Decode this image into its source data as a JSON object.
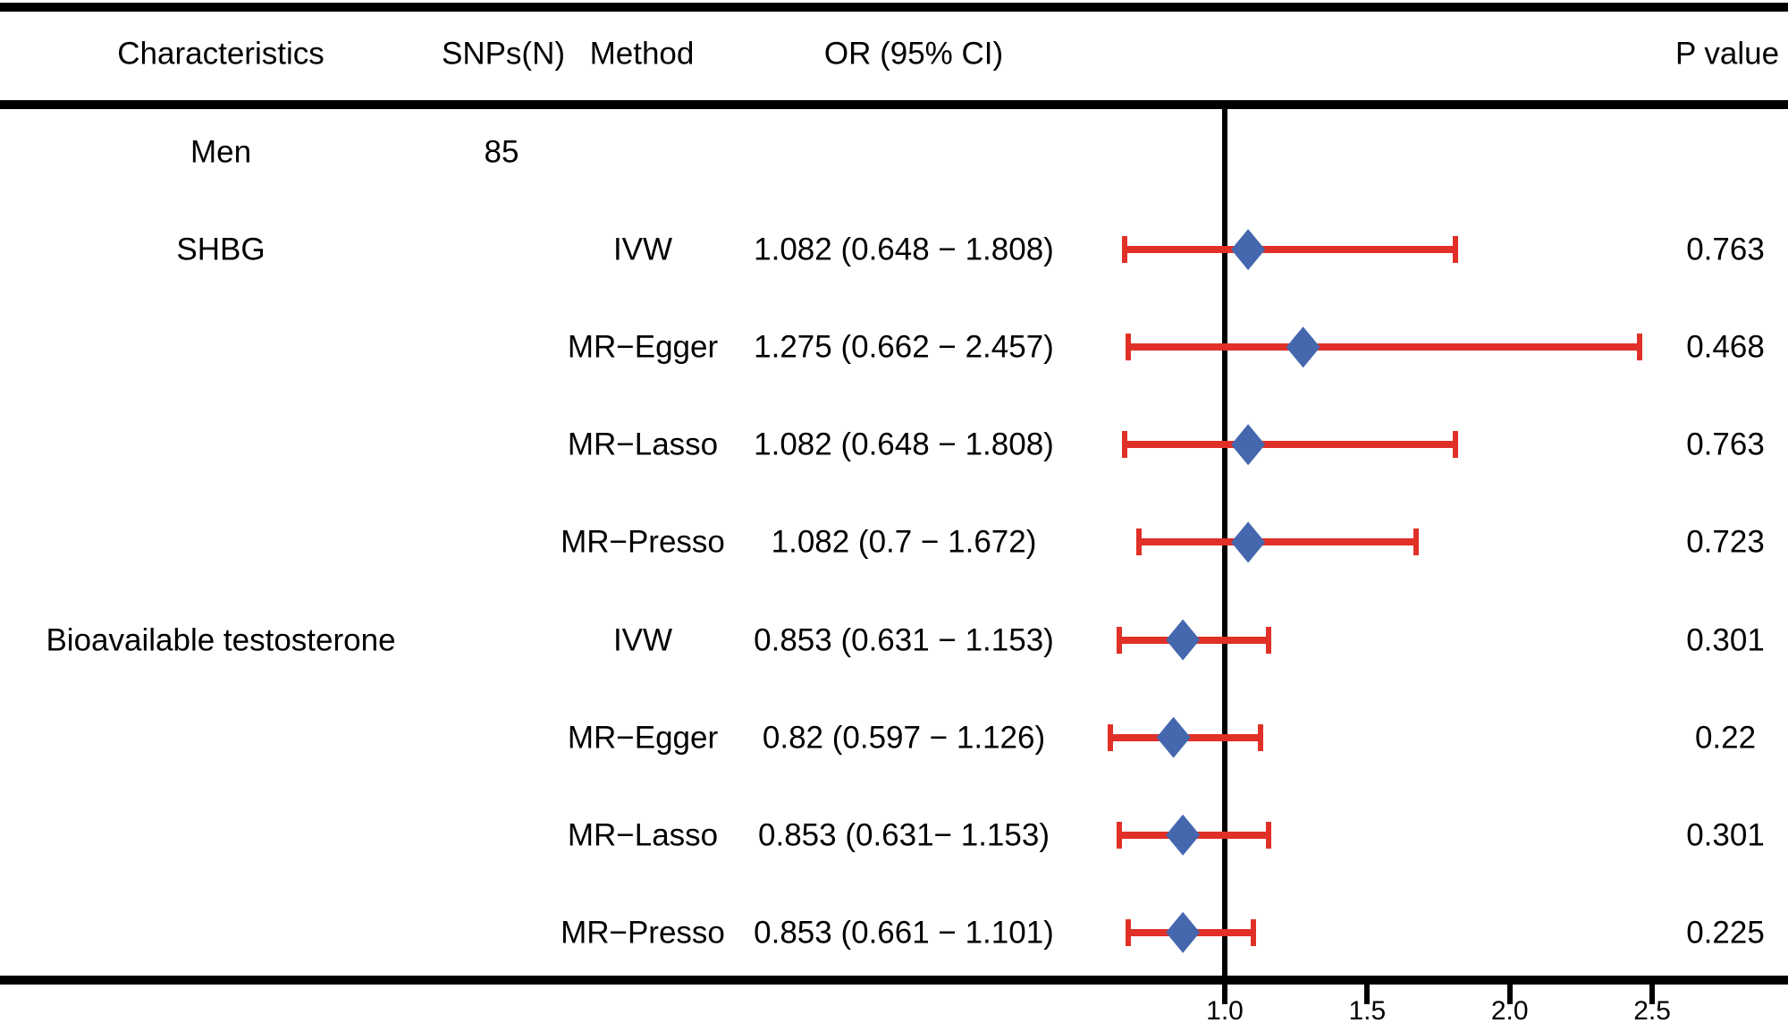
{
  "header": {
    "characteristics": "Characteristics",
    "snps": "SNPs(N)",
    "method": "Method",
    "or_ci": "OR (95% CI)",
    "p_value": "P value"
  },
  "colors": {
    "diamond": "#4467AE",
    "error_bar": "#E03028",
    "rule": "#000000"
  },
  "chart_data": {
    "type": "forest",
    "title": "",
    "columns": [
      "Characteristics",
      "SNPs(N)",
      "Method",
      "OR (95% CI)",
      "P value"
    ],
    "x_axis": {
      "ticks": [
        1.0,
        1.5,
        2.0,
        2.5
      ],
      "tick_labels": [
        "1.0",
        "1.5",
        "2.0",
        "2.5"
      ],
      "ref_line": 1.0,
      "xlim": [
        0.5,
        2.97
      ],
      "grid": false
    },
    "rows": [
      {
        "characteristic": "Men",
        "snps": "85",
        "method": "",
        "or_text": "",
        "or": null,
        "ci_low": null,
        "ci_high": null,
        "p": ""
      },
      {
        "characteristic": "SHBG",
        "snps": "",
        "method": "IVW",
        "or_text": "1.082 (0.648 − 1.808)",
        "or": 1.082,
        "ci_low": 0.648,
        "ci_high": 1.808,
        "p": "0.763"
      },
      {
        "characteristic": "",
        "snps": "",
        "method": "MR−Egger",
        "or_text": "1.275 (0.662 − 2.457)",
        "or": 1.275,
        "ci_low": 0.662,
        "ci_high": 2.457,
        "p": "0.468"
      },
      {
        "characteristic": "",
        "snps": "",
        "method": "MR−Lasso",
        "or_text": "1.082 (0.648 − 1.808)",
        "or": 1.082,
        "ci_low": 0.648,
        "ci_high": 1.808,
        "p": "0.763"
      },
      {
        "characteristic": "",
        "snps": "",
        "method": "MR−Presso",
        "or_text": "1.082 (0.7 − 1.672)",
        "or": 1.082,
        "ci_low": 0.7,
        "ci_high": 1.672,
        "p": "0.723"
      },
      {
        "characteristic": "Bioavailable testosterone",
        "snps": "",
        "method": "IVW",
        "or_text": "0.853 (0.631 − 1.153)",
        "or": 0.853,
        "ci_low": 0.631,
        "ci_high": 1.153,
        "p": "0.301"
      },
      {
        "characteristic": "",
        "snps": "",
        "method": "MR−Egger",
        "or_text": "0.82 (0.597 − 1.126)",
        "or": 0.82,
        "ci_low": 0.597,
        "ci_high": 1.126,
        "p": "0.22"
      },
      {
        "characteristic": "",
        "snps": "",
        "method": "MR−Lasso",
        "or_text": "0.853 (0.631− 1.153)",
        "or": 0.853,
        "ci_low": 0.631,
        "ci_high": 1.153,
        "p": "0.301"
      },
      {
        "characteristic": "",
        "snps": "",
        "method": "MR−Presso",
        "or_text": "0.853 (0.661 − 1.101)",
        "or": 0.853,
        "ci_low": 0.661,
        "ci_high": 1.101,
        "p": "0.225"
      }
    ]
  }
}
